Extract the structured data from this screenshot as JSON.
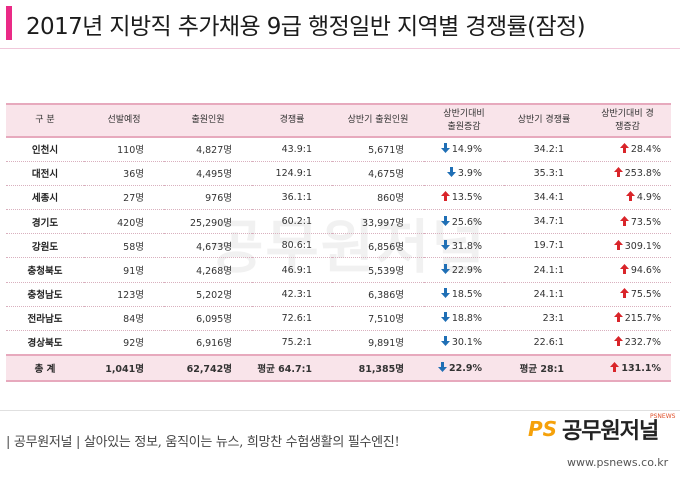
{
  "header": {
    "title": "2017년 지방직 추가채용 9급 행정일반 지역별 경쟁률(잠정)"
  },
  "watermark": {
    "text": "공무원저널"
  },
  "colors": {
    "accent": "#ea2a86",
    "header_bg": "#f9e4ea",
    "arrow_up": "#d9252a",
    "arrow_down": "#1f6fb5"
  },
  "table": {
    "columns": [
      "구 분",
      "선발예정",
      "출원인원",
      "경쟁률",
      "상반기 출원인원",
      "상반기대비 출원증감",
      "상반기 경쟁률",
      "상반기대비 경쟁증감"
    ],
    "rows": [
      {
        "region": "인천시",
        "planned": "110명",
        "applicants": "4,827명",
        "ratio": "43.9:1",
        "h1_applicants": "5,671명",
        "app_change": "14.9%",
        "app_dir": "down",
        "h1_ratio": "34.2:1",
        "ratio_change": "28.4%",
        "ratio_dir": "up"
      },
      {
        "region": "대전시",
        "planned": "36명",
        "applicants": "4,495명",
        "ratio": "124.9:1",
        "h1_applicants": "4,675명",
        "app_change": "3.9%",
        "app_dir": "down",
        "h1_ratio": "35.3:1",
        "ratio_change": "253.8%",
        "ratio_dir": "up"
      },
      {
        "region": "세종시",
        "planned": "27명",
        "applicants": "976명",
        "ratio": "36.1:1",
        "h1_applicants": "860명",
        "app_change": "13.5%",
        "app_dir": "up",
        "h1_ratio": "34.4:1",
        "ratio_change": "4.9%",
        "ratio_dir": "up"
      },
      {
        "region": "경기도",
        "planned": "420명",
        "applicants": "25,290명",
        "ratio": "60.2:1",
        "h1_applicants": "33,997명",
        "app_change": "25.6%",
        "app_dir": "down",
        "h1_ratio": "34.7:1",
        "ratio_change": "73.5%",
        "ratio_dir": "up"
      },
      {
        "region": "강원도",
        "planned": "58명",
        "applicants": "4,673명",
        "ratio": "80.6:1",
        "h1_applicants": "6,856명",
        "app_change": "31.8%",
        "app_dir": "down",
        "h1_ratio": "19.7:1",
        "ratio_change": "309.1%",
        "ratio_dir": "up"
      },
      {
        "region": "충청북도",
        "planned": "91명",
        "applicants": "4,268명",
        "ratio": "46.9:1",
        "h1_applicants": "5,539명",
        "app_change": "22.9%",
        "app_dir": "down",
        "h1_ratio": "24.1:1",
        "ratio_change": "94.6%",
        "ratio_dir": "up"
      },
      {
        "region": "충청남도",
        "planned": "123명",
        "applicants": "5,202명",
        "ratio": "42.3:1",
        "h1_applicants": "6,386명",
        "app_change": "18.5%",
        "app_dir": "down",
        "h1_ratio": "24.1:1",
        "ratio_change": "75.5%",
        "ratio_dir": "up"
      },
      {
        "region": "전라남도",
        "planned": "84명",
        "applicants": "6,095명",
        "ratio": "72.6:1",
        "h1_applicants": "7,510명",
        "app_change": "18.8%",
        "app_dir": "down",
        "h1_ratio": "23:1",
        "ratio_change": "215.7%",
        "ratio_dir": "up"
      },
      {
        "region": "경상북도",
        "planned": "92명",
        "applicants": "6,916명",
        "ratio": "75.2:1",
        "h1_applicants": "9,891명",
        "app_change": "30.1%",
        "app_dir": "down",
        "h1_ratio": "22.6:1",
        "ratio_change": "232.7%",
        "ratio_dir": "up"
      }
    ],
    "total": {
      "region": "총 계",
      "planned": "1,041명",
      "applicants": "62,742명",
      "ratio": "평균 64.7:1",
      "h1_applicants": "81,385명",
      "app_change": "22.9%",
      "app_dir": "down",
      "h1_ratio": "평균 28:1",
      "ratio_change": "131.1%",
      "ratio_dir": "up"
    }
  },
  "footer": {
    "tagline": "| 공무원저널 | 살아있는 정보, 움직이는 뉴스, 희망찬 수험생활의 필수엔진!",
    "logo_ps": "PS",
    "logo_name": "공무원저널",
    "logo_sub": "PSNEWS",
    "url": "www.psnews.co.kr"
  }
}
